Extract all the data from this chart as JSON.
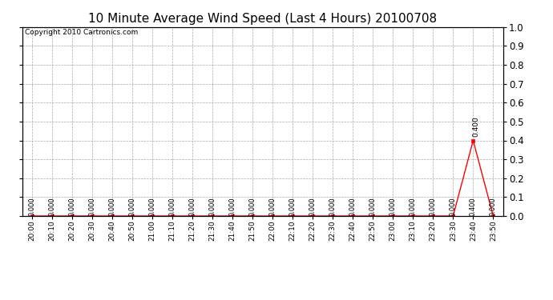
{
  "title": "10 Minute Average Wind Speed (Last 4 Hours) 20100708",
  "copyright_text": "Copyright 2010 Cartronics.com",
  "x_labels": [
    "20:00",
    "20:10",
    "20:20",
    "20:30",
    "20:40",
    "20:50",
    "21:00",
    "21:10",
    "21:20",
    "21:30",
    "21:40",
    "21:50",
    "22:00",
    "22:10",
    "22:20",
    "22:30",
    "22:40",
    "22:50",
    "23:00",
    "23:10",
    "23:20",
    "23:30",
    "23:40",
    "23:50"
  ],
  "y_values": [
    0.0,
    0.0,
    0.0,
    0.0,
    0.0,
    0.0,
    0.0,
    0.0,
    0.0,
    0.0,
    0.0,
    0.0,
    0.0,
    0.0,
    0.0,
    0.0,
    0.0,
    0.0,
    0.0,
    0.0,
    0.0,
    0.0,
    0.4,
    0.0
  ],
  "point_labels": [
    "0.000",
    "0.000",
    "0.000",
    "0.000",
    "0.000",
    "0.000",
    "0.000",
    "0.000",
    "0.000",
    "0.000",
    "0.000",
    "0.000",
    "0.000",
    "0.000",
    "0.000",
    "0.000",
    "0.000",
    "0.000",
    "0.000",
    "0.000",
    "0.000",
    "0.000",
    "0.400",
    "0.000"
  ],
  "line_color": "#ff0000",
  "marker_color": "#ff0000",
  "background_color": "#ffffff",
  "grid_color": "#aaaaaa",
  "ylim": [
    0.0,
    1.0
  ],
  "yticks_right": [
    0.0,
    0.1,
    0.2,
    0.3,
    0.4,
    0.5,
    0.6,
    0.7,
    0.8,
    0.9,
    1.0
  ],
  "title_fontsize": 11,
  "label_fontsize": 6.5,
  "point_label_fontsize": 6,
  "copyright_fontsize": 6.5
}
